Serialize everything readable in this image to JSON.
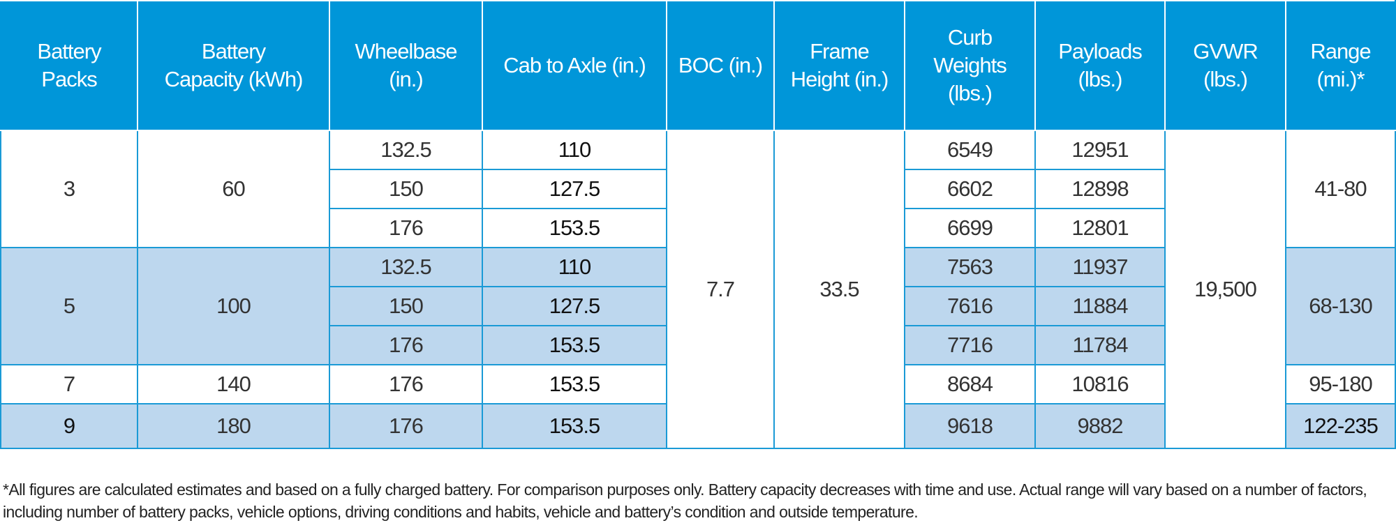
{
  "headers": [
    "Battery\nPacks",
    "Battery\nCapacity (kWh)",
    "Wheelbase\n(in.)",
    "Cab to Axle (in.)",
    "BOC (in.)",
    "Frame\nHeight (in.)",
    "Curb\nWeights\n(lbs.)",
    "Payloads\n(lbs.)",
    "GVWR\n(lbs.)",
    "Range\n(mi.)*"
  ],
  "groups": [
    {
      "packs": "3",
      "capacity": "60",
      "range": "41-80",
      "rows": [
        {
          "wheelbase": "132.5",
          "cab_to_axle": "110",
          "curb": "6549",
          "payload": "12951"
        },
        {
          "wheelbase": "150",
          "cab_to_axle": "127.5",
          "curb": "6602",
          "payload": "12898"
        },
        {
          "wheelbase": "176",
          "cab_to_axle": "153.5",
          "curb": "6699",
          "payload": "12801"
        }
      ]
    },
    {
      "packs": "5",
      "capacity": "100",
      "range": "68-130",
      "rows": [
        {
          "wheelbase": "132.5",
          "cab_to_axle": "110",
          "curb": "7563",
          "payload": "11937"
        },
        {
          "wheelbase": "150",
          "cab_to_axle": "127.5",
          "curb": "7616",
          "payload": "11884"
        },
        {
          "wheelbase": "176",
          "cab_to_axle": "153.5",
          "curb": "7716",
          "payload": "11784"
        }
      ]
    },
    {
      "packs": "7",
      "capacity": "140",
      "range": "95-180",
      "rows": [
        {
          "wheelbase": "176",
          "cab_to_axle": "153.5",
          "curb": "8684",
          "payload": "10816"
        }
      ]
    },
    {
      "packs": "9",
      "capacity": "180",
      "range": "122-235",
      "rows": [
        {
          "wheelbase": "176",
          "cab_to_axle": "153.5",
          "curb": "9618",
          "payload": "9882"
        }
      ]
    }
  ],
  "boc": "7.7",
  "frame_height": "33.5",
  "gvwr": "19,500",
  "footnote": "*All figures are calculated estimates and based on a fully charged battery. For comparison purposes only. Battery capacity decreases with time and use. Actual range will vary based on a number of factors, including number of battery packs, vehicle options, driving conditions and habits, vehicle and battery’s condition and outside temperature.",
  "colors": {
    "header_bg": "#0096d9",
    "shaded_row": "#bdd7ee",
    "border": "#1a9ad6"
  }
}
